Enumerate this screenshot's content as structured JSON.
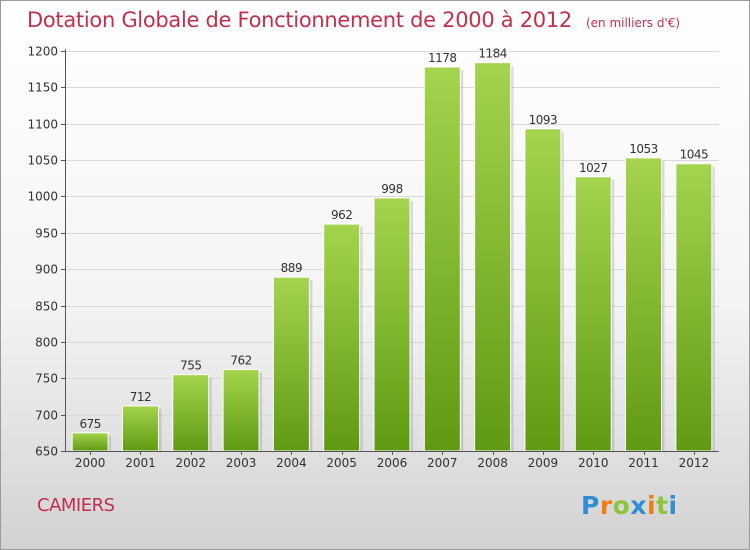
{
  "chart_data": {
    "type": "bar",
    "title": "Dotation Globale de Fonctionnement de 2000 à 2012",
    "subtitle": "(en milliers d'€)",
    "categories": [
      "2000",
      "2001",
      "2002",
      "2003",
      "2004",
      "2005",
      "2006",
      "2007",
      "2008",
      "2009",
      "2010",
      "2011",
      "2012"
    ],
    "values": [
      675,
      712,
      755,
      762,
      889,
      962,
      998,
      1178,
      1184,
      1093,
      1027,
      1053,
      1045
    ],
    "ylim": [
      650,
      1200
    ],
    "yticks": [
      650,
      700,
      750,
      800,
      850,
      900,
      950,
      1000,
      1050,
      1100,
      1150,
      1200
    ],
    "grid": true,
    "bar_color_top": "#a5d44e",
    "bar_color_bottom": "#5f9a12"
  },
  "location": "CAMIERS",
  "logo": {
    "text": "Proxiti",
    "letters": [
      {
        "ch": "P",
        "color": "#2f8fd2"
      },
      {
        "ch": "r",
        "color": "#ef7d14"
      },
      {
        "ch": "o",
        "color": "#8cc43c"
      },
      {
        "ch": "x",
        "color": "#2f8fd2"
      },
      {
        "ch": "i",
        "color": "#ef7d14"
      },
      {
        "ch": "t",
        "color": "#8cc43c"
      },
      {
        "ch": "i",
        "color": "#2f8fd2"
      }
    ]
  }
}
